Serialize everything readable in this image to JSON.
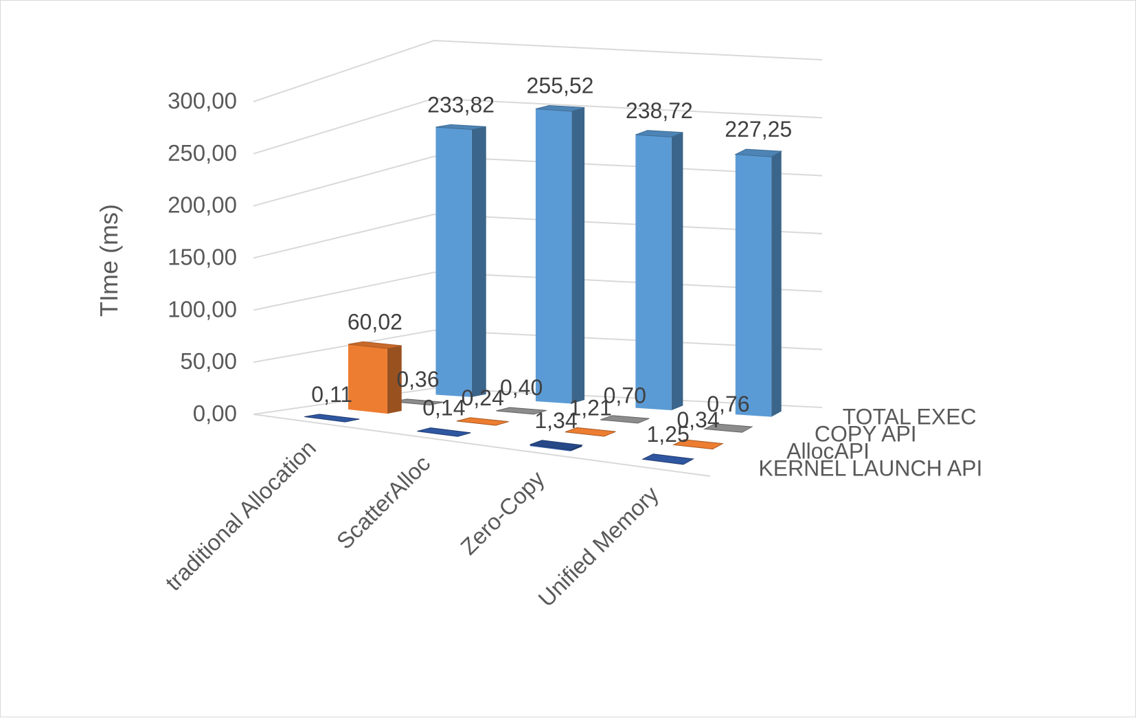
{
  "chart_data": {
    "type": "bar",
    "subtype": "3d-column",
    "ylabel": "TIme (ms)",
    "ylim": [
      0,
      300
    ],
    "y_ticks": [
      "0,00",
      "50,00",
      "100,00",
      "150,00",
      "200,00",
      "250,00",
      "300,00"
    ],
    "categories": [
      "traditional Allocation",
      "ScatterAlloc",
      "Zero-Copy",
      "Unified Memory"
    ],
    "series": [
      {
        "name": "KERNEL LAUNCH API",
        "values": [
          0.11,
          0.14,
          1.34,
          1.25
        ],
        "labels": [
          "0,11",
          "0,14",
          "1,34",
          "1,25"
        ],
        "color": "#2f56a0"
      },
      {
        "name": "AllocAPI",
        "values": [
          60.02,
          0.24,
          1.21,
          0.34
        ],
        "labels": [
          "60,02",
          "0,24",
          "1,21",
          "0,34"
        ],
        "color": "#ed7d31"
      },
      {
        "name": "COPY API",
        "values": [
          0.36,
          0.4,
          0.7,
          0.76
        ],
        "labels": [
          "0,36",
          "0,40",
          "0,70",
          "0,76"
        ],
        "color": "#8c8c8c"
      },
      {
        "name": "TOTAL EXEC",
        "values": [
          233.82,
          255.52,
          238.72,
          227.25
        ],
        "labels": [
          "233,82",
          "255,52",
          "238,72",
          "227,25"
        ],
        "color": "#5b9bd5"
      }
    ],
    "grid": true,
    "legend": "depth-axis-right"
  }
}
